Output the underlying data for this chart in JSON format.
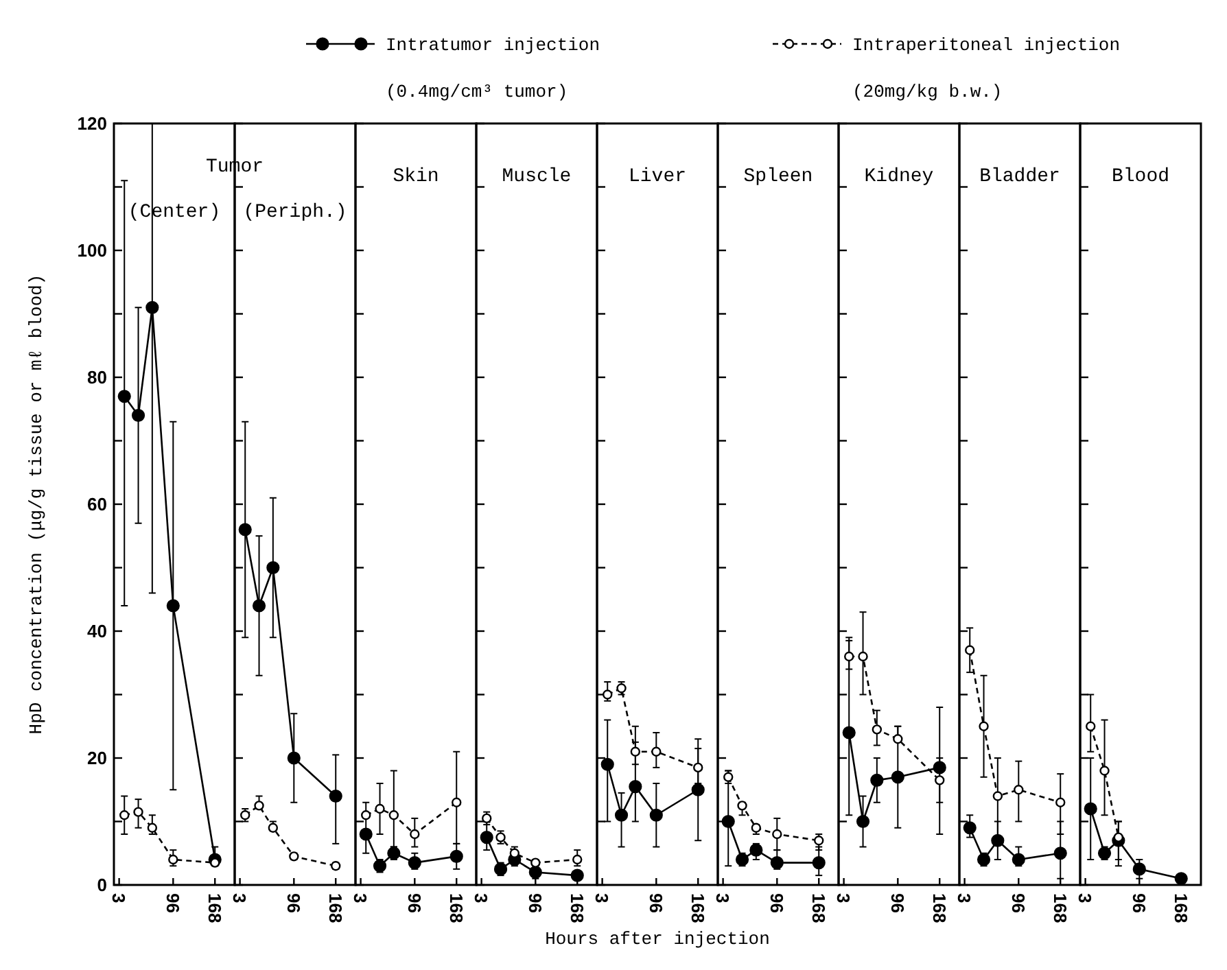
{
  "chart_data": [
    {
      "type": "line",
      "title": "(Center)",
      "ylabel": "HpD concentration (μg/g tissue or mℓ blood)",
      "legend": "top",
      "annotations": [
        "Tumor",
        "(0.4mg/cm³ tumor)",
        "(20mg/kg b.w.)"
      ],
      "marker": "circle",
      "x": [
        12,
        36,
        60,
        96,
        168
      ],
      "xlim": [
        -6,
        202
      ],
      "xticks": [
        3,
        96,
        168
      ],
      "ylim": [
        0,
        120
      ],
      "yticks": [
        0,
        {
          "value": 10,
          "label": null
        },
        20,
        {
          "value": 30,
          "label": null
        },
        40,
        {
          "value": 50,
          "label": null
        },
        60,
        {
          "value": 70,
          "label": null
        },
        80,
        {
          "value": 90,
          "label": null
        },
        100,
        {
          "value": 110,
          "label": null
        },
        120
      ],
      "series": [
        {
          "name": "Intratumor injection",
          "color": "#000000",
          "line_style": "solid",
          "values": [
            77,
            74,
            91,
            44,
            4
          ],
          "errors": [
            [
              44,
              111
            ],
            [
              57,
              91
            ],
            [
              46,
              120
            ],
            [
              15,
              73
            ],
            [
              3,
              6
            ]
          ]
        },
        {
          "name": "Intraperitoneal injection",
          "color": "#000000",
          "line_style": "dashed",
          "values": [
            11,
            11.5,
            9,
            4,
            3.5
          ],
          "errors": [
            [
              8,
              14
            ],
            [
              9,
              13.5
            ],
            [
              8,
              11
            ],
            [
              3,
              5.5
            ],
            null
          ]
        }
      ]
    },
    {
      "type": "line",
      "title": "(Periph.)",
      "tick_labels": "x",
      "marker": "circle",
      "x": [
        12,
        36,
        60,
        96,
        168
      ],
      "xlim": [
        -6,
        202
      ],
      "xticks": [
        3,
        96,
        168
      ],
      "ylim": [
        0,
        120
      ],
      "yticks": [
        0,
        {
          "value": 10,
          "label": null
        },
        20,
        {
          "value": 30,
          "label": null
        },
        40,
        {
          "value": 50,
          "label": null
        },
        60,
        {
          "value": 70,
          "label": null
        },
        80,
        {
          "value": 90,
          "label": null
        },
        100,
        {
          "value": 110,
          "label": null
        },
        120
      ],
      "series": [
        {
          "color": "#000000",
          "line_style": "solid",
          "values": [
            56,
            44,
            50,
            20,
            14
          ],
          "errors": [
            [
              39,
              73
            ],
            [
              33,
              55
            ],
            [
              39,
              61
            ],
            [
              13,
              27
            ],
            [
              6.5,
              20.5
            ]
          ]
        },
        {
          "color": "#000000",
          "line_style": "dashed",
          "values": [
            11,
            12.5,
            9,
            4.5,
            3
          ],
          "errors": [
            [
              10,
              12
            ],
            [
              12,
              14
            ],
            [
              8.5,
              10
            ],
            [
              4,
              5
            ],
            [
              2.5,
              3.5
            ]
          ]
        }
      ]
    },
    {
      "type": "line",
      "title": "Skin",
      "tick_labels": "x",
      "marker": "circle",
      "x": [
        12,
        36,
        60,
        96,
        168
      ],
      "xlim": [
        -6,
        202
      ],
      "xticks": [
        3,
        96,
        168
      ],
      "ylim": [
        0,
        120
      ],
      "yticks": [
        0,
        {
          "value": 10,
          "label": null
        },
        20,
        {
          "value": 30,
          "label": null
        },
        40,
        {
          "value": 50,
          "label": null
        },
        60,
        {
          "value": 70,
          "label": null
        },
        80,
        {
          "value": 90,
          "label": null
        },
        100,
        {
          "value": 110,
          "label": null
        },
        120
      ],
      "series": [
        {
          "color": "#000000",
          "line_style": "solid",
          "values": [
            8,
            3,
            5,
            3.5,
            4.5
          ],
          "errors": [
            [
              5,
              11
            ],
            [
              2,
              4
            ],
            [
              4,
              6
            ],
            [
              2.5,
              5
            ],
            [
              2.5,
              6.5
            ]
          ]
        },
        {
          "color": "#000000",
          "line_style": "dashed",
          "values": [
            11,
            12,
            11,
            8,
            13
          ],
          "errors": [
            [
              11,
              13
            ],
            [
              8,
              16
            ],
            [
              6,
              18
            ],
            [
              6,
              10.5
            ],
            [
              6.5,
              21
            ]
          ]
        }
      ]
    },
    {
      "type": "line",
      "title": "Muscle",
      "tick_labels": "x",
      "marker": "circle",
      "x": [
        12,
        36,
        60,
        96,
        168
      ],
      "xlim": [
        -6,
        202
      ],
      "xticks": [
        3,
        96,
        168
      ],
      "ylim": [
        0,
        120
      ],
      "yticks": [
        0,
        {
          "value": 10,
          "label": null
        },
        20,
        {
          "value": 30,
          "label": null
        },
        40,
        {
          "value": 50,
          "label": null
        },
        60,
        {
          "value": 70,
          "label": null
        },
        80,
        {
          "value": 90,
          "label": null
        },
        100,
        {
          "value": 110,
          "label": null
        },
        120
      ],
      "series": [
        {
          "color": "#000000",
          "line_style": "solid",
          "values": [
            7.5,
            2.5,
            4,
            2,
            1.5
          ],
          "errors": [
            [
              5.5,
              10
            ],
            [
              1.5,
              3.5
            ],
            [
              3,
              5
            ],
            [
              1,
              2.5
            ],
            [
              1,
              2
            ]
          ]
        },
        {
          "color": "#000000",
          "line_style": "dashed",
          "values": [
            10.5,
            7.5,
            5,
            3.5,
            4
          ],
          "errors": [
            [
              9.5,
              11.5
            ],
            [
              6.5,
              8.5
            ],
            [
              4,
              6
            ],
            [
              3,
              4
            ],
            [
              3,
              5.5
            ]
          ]
        }
      ]
    },
    {
      "type": "line",
      "title": "Liver",
      "xlabel": "Hours after injection",
      "tick_labels": "x",
      "marker": "circle",
      "x": [
        12,
        36,
        60,
        96,
        168
      ],
      "xlim": [
        -6,
        202
      ],
      "xticks": [
        3,
        96,
        168
      ],
      "ylim": [
        0,
        120
      ],
      "yticks": [
        0,
        {
          "value": 10,
          "label": null
        },
        20,
        {
          "value": 30,
          "label": null
        },
        40,
        {
          "value": 50,
          "label": null
        },
        60,
        {
          "value": 70,
          "label": null
        },
        80,
        {
          "value": 90,
          "label": null
        },
        100,
        {
          "value": 110,
          "label": null
        },
        120
      ],
      "series": [
        {
          "color": "#000000",
          "line_style": "solid",
          "values": [
            19,
            11,
            15.5,
            11,
            15
          ],
          "errors": [
            [
              10,
              26
            ],
            [
              6,
              14.5
            ],
            [
              10,
              22.5
            ],
            [
              6,
              16
            ],
            [
              7,
              21.5
            ]
          ]
        },
        {
          "color": "#000000",
          "line_style": "dashed",
          "values": [
            30,
            31,
            21,
            21,
            18.5
          ],
          "errors": [
            [
              29,
              32
            ],
            [
              30,
              32
            ],
            [
              19,
              25
            ],
            [
              18.5,
              24
            ],
            [
              16,
              23
            ]
          ]
        }
      ]
    },
    {
      "type": "line",
      "title": "Spleen",
      "tick_labels": "x",
      "marker": "circle",
      "x": [
        12,
        36,
        60,
        96,
        168
      ],
      "xlim": [
        -6,
        202
      ],
      "xticks": [
        3,
        96,
        168
      ],
      "ylim": [
        0,
        120
      ],
      "yticks": [
        0,
        {
          "value": 10,
          "label": null
        },
        20,
        {
          "value": 30,
          "label": null
        },
        40,
        {
          "value": 50,
          "label": null
        },
        60,
        {
          "value": 70,
          "label": null
        },
        80,
        {
          "value": 90,
          "label": null
        },
        100,
        {
          "value": 110,
          "label": null
        },
        120
      ],
      "series": [
        {
          "color": "#000000",
          "line_style": "solid",
          "values": [
            10,
            4,
            5.5,
            3.5,
            3.5
          ],
          "errors": [
            [
              3,
              18
            ],
            [
              3,
              5
            ],
            [
              4,
              6.5
            ],
            [
              2.5,
              5.5
            ],
            [
              1.5,
              6
            ]
          ]
        },
        {
          "color": "#000000",
          "line_style": "dashed",
          "values": [
            17,
            12.5,
            9,
            8,
            7
          ],
          "errors": [
            [
              16,
              18
            ],
            [
              11,
              13
            ],
            [
              8,
              9.5
            ],
            [
              5.5,
              10.5
            ],
            [
              5.5,
              8
            ]
          ]
        }
      ]
    },
    {
      "type": "line",
      "title": "Kidney",
      "tick_labels": "x",
      "marker": "circle",
      "x": [
        12,
        36,
        60,
        96,
        168
      ],
      "xlim": [
        -6,
        202
      ],
      "xticks": [
        3,
        96,
        168
      ],
      "ylim": [
        0,
        120
      ],
      "yticks": [
        0,
        {
          "value": 10,
          "label": null
        },
        20,
        {
          "value": 30,
          "label": null
        },
        40,
        {
          "value": 50,
          "label": null
        },
        60,
        {
          "value": 70,
          "label": null
        },
        80,
        {
          "value": 90,
          "label": null
        },
        100,
        {
          "value": 110,
          "label": null
        },
        120
      ],
      "series": [
        {
          "color": "#000000",
          "line_style": "solid",
          "values": [
            24,
            10,
            16.5,
            17,
            18.5
          ],
          "errors": [
            [
              11,
              39
            ],
            [
              6,
              14
            ],
            [
              13,
              20
            ],
            [
              9,
              25
            ],
            [
              8,
              28
            ]
          ]
        },
        {
          "color": "#000000",
          "line_style": "dashed",
          "values": [
            36,
            36,
            24.5,
            23,
            16.5
          ],
          "errors": [
            [
              34,
              38.5
            ],
            [
              30,
              43
            ],
            [
              22,
              27.5
            ],
            [
              23,
              25
            ],
            [
              13,
              20
            ]
          ]
        }
      ]
    },
    {
      "type": "line",
      "title": "Bladder",
      "tick_labels": "x",
      "marker": "circle",
      "x": [
        12,
        36,
        60,
        96,
        168
      ],
      "xlim": [
        -6,
        202
      ],
      "xticks": [
        3,
        96,
        168
      ],
      "ylim": [
        0,
        120
      ],
      "yticks": [
        0,
        {
          "value": 10,
          "label": null
        },
        20,
        {
          "value": 30,
          "label": null
        },
        40,
        {
          "value": 50,
          "label": null
        },
        60,
        {
          "value": 70,
          "label": null
        },
        80,
        {
          "value": 90,
          "label": null
        },
        100,
        {
          "value": 110,
          "label": null
        },
        120
      ],
      "series": [
        {
          "color": "#000000",
          "line_style": "solid",
          "values": [
            9,
            4,
            7,
            4,
            5
          ],
          "errors": [
            [
              7.5,
              11
            ],
            [
              3,
              5
            ],
            [
              4,
              10
            ],
            [
              3,
              6
            ],
            [
              1,
              10
            ]
          ]
        },
        {
          "color": "#000000",
          "line_style": "dashed",
          "values": [
            37,
            25,
            14,
            15,
            13
          ],
          "errors": [
            [
              33.5,
              40.5
            ],
            [
              17,
              33
            ],
            [
              7.5,
              20
            ],
            [
              10,
              19.5
            ],
            [
              8,
              17.5
            ]
          ]
        }
      ]
    },
    {
      "type": "line",
      "title": "Blood",
      "tick_labels": "x",
      "marker": "circle",
      "x": [
        12,
        36,
        60,
        96,
        168
      ],
      "xlim": [
        -6,
        202
      ],
      "xticks": [
        3,
        96,
        168
      ],
      "ylim": [
        0,
        120
      ],
      "yticks": [
        0,
        {
          "value": 10,
          "label": null
        },
        20,
        {
          "value": 30,
          "label": null
        },
        40,
        {
          "value": 50,
          "label": null
        },
        60,
        {
          "value": 70,
          "label": null
        },
        80,
        {
          "value": 90,
          "label": null
        },
        100,
        {
          "value": 110,
          "label": null
        },
        120
      ],
      "series": [
        {
          "color": "#000000",
          "line_style": "solid",
          "values": [
            12,
            5,
            7,
            2.5,
            1
          ],
          "errors": [
            [
              4,
              20
            ],
            [
              4,
              6
            ],
            [
              3,
              10
            ],
            [
              1,
              4
            ],
            null
          ]
        },
        {
          "color": "#000000",
          "line_style": "dashed",
          "values": [
            25,
            18,
            7.5,
            null,
            null
          ],
          "errors": [
            [
              21,
              30
            ],
            [
              11,
              26
            ],
            [
              4,
              10
            ],
            null,
            null
          ]
        }
      ]
    }
  ]
}
